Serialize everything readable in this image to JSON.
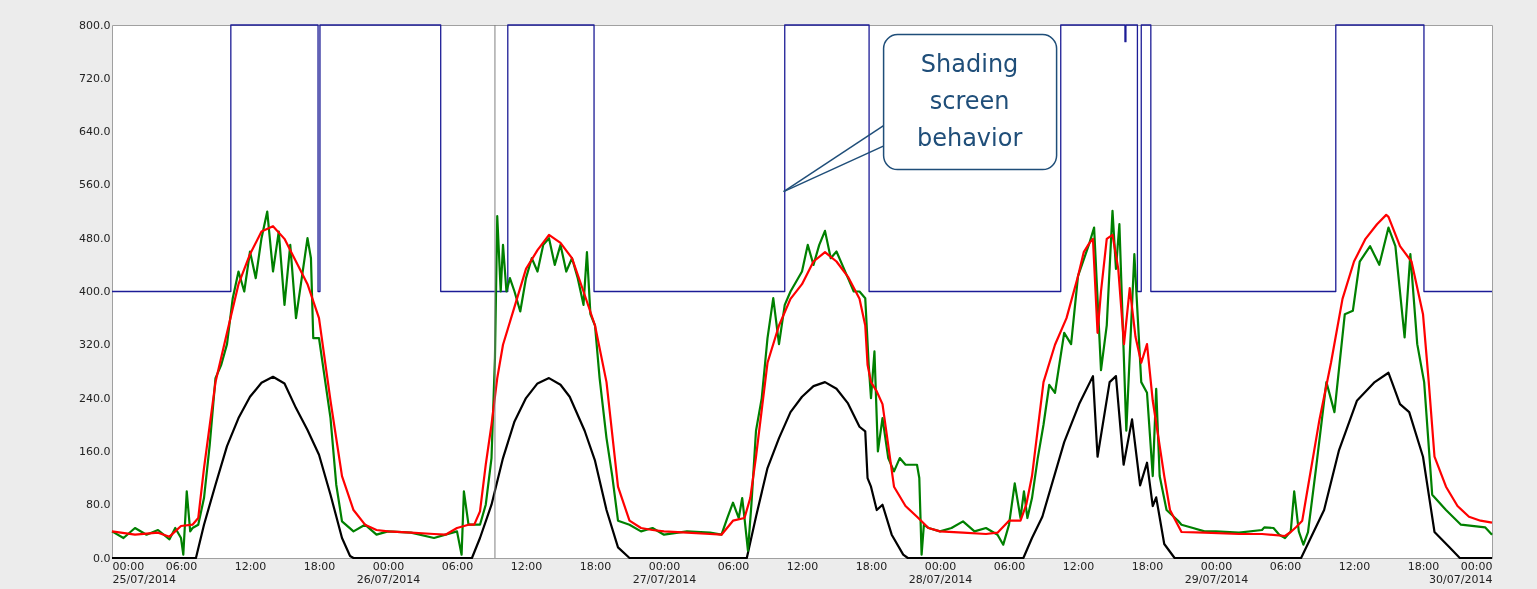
{
  "chart_data": {
    "type": "line",
    "xlim": [
      "2014-07-25T00:00",
      "2014-07-30T00:00"
    ],
    "xticks": [
      {
        "value": "2014-07-25T00:00",
        "label": "00:00\n25/07/2014"
      },
      {
        "value": "2014-07-25T06:00",
        "label": "06:00"
      },
      {
        "value": "2014-07-25T12:00",
        "label": "12:00"
      },
      {
        "value": "2014-07-25T18:00",
        "label": "18:00"
      },
      {
        "value": "2014-07-26T00:00",
        "label": "00:00\n26/07/2014"
      },
      {
        "value": "2014-07-26T06:00",
        "label": "06:00"
      },
      {
        "value": "2014-07-26T12:00",
        "label": "12:00"
      },
      {
        "value": "2014-07-26T18:00",
        "label": "18:00"
      },
      {
        "value": "2014-07-27T00:00",
        "label": "00:00\n27/07/2014"
      },
      {
        "value": "2014-07-27T06:00",
        "label": "06:00"
      },
      {
        "value": "2014-07-27T12:00",
        "label": "12:00"
      },
      {
        "value": "2014-07-27T18:00",
        "label": "18:00"
      },
      {
        "value": "2014-07-28T00:00",
        "label": "00:00\n28/07/2014"
      },
      {
        "value": "2014-07-28T06:00",
        "label": "06:00"
      },
      {
        "value": "2014-07-28T12:00",
        "label": "12:00"
      },
      {
        "value": "2014-07-28T18:00",
        "label": "18:00"
      },
      {
        "value": "2014-07-29T00:00",
        "label": "00:00\n29/07/2014"
      },
      {
        "value": "2014-07-29T06:00",
        "label": "06:00"
      },
      {
        "value": "2014-07-29T12:00",
        "label": "12:00"
      },
      {
        "value": "2014-07-29T18:00",
        "label": "18:00"
      },
      {
        "value": "2014-07-30T00:00",
        "label": "00:00\n30/07/2014"
      }
    ],
    "ylim": [
      0,
      800
    ],
    "yticks": [
      {
        "value": 0,
        "label": "0.0"
      },
      {
        "value": 80,
        "label": "80.0"
      },
      {
        "value": 160,
        "label": "160.0"
      },
      {
        "value": 240,
        "label": "240.0"
      },
      {
        "value": 320,
        "label": "320.0"
      },
      {
        "value": 400,
        "label": "400.0"
      },
      {
        "value": 480,
        "label": "480.0"
      },
      {
        "value": 560,
        "label": "560.0"
      },
      {
        "value": 640,
        "label": "640.0"
      },
      {
        "value": 720,
        "label": "720.0"
      },
      {
        "value": 800,
        "label": "800.0"
      }
    ],
    "series": [
      {
        "type": "step",
        "color": "#1c1c96",
        "x": [
          "2014-07-25T00:00",
          "2014-07-25T10:20",
          "2014-07-25T17:55",
          "2014-07-25T18:05",
          "2014-07-26T04:35",
          "2014-07-26T10:25",
          "2014-07-26T17:55",
          "2014-07-27T10:30",
          "2014-07-27T17:50",
          "2014-07-28T10:30",
          "2014-07-28T16:05",
          "2014-07-28T16:10",
          "2014-07-28T17:10",
          "2014-07-28T17:30",
          "2014-07-28T18:20",
          "2014-07-29T10:25",
          "2014-07-29T18:05",
          "2014-07-30T00:00"
        ],
        "values": [
          400,
          800,
          400,
          800,
          400,
          800,
          400,
          800,
          400,
          800,
          775,
          800,
          400,
          800,
          400,
          800,
          400,
          400
        ]
      },
      {
        "type": "line",
        "color": "#000000",
        "x": [
          "2014-07-25T00:00",
          "2014-07-25T07:18",
          "2014-07-25T08:00",
          "2014-07-25T09:00",
          "2014-07-25T10:00",
          "2014-07-25T11:00",
          "2014-07-25T12:00",
          "2014-07-25T13:00",
          "2014-07-25T14:00",
          "2014-07-25T15:00",
          "2014-07-25T16:00",
          "2014-07-25T17:00",
          "2014-07-25T18:00",
          "2014-07-25T19:00",
          "2014-07-25T20:00",
          "2014-07-25T20:42",
          "2014-07-25T21:00",
          "2014-07-26T07:18",
          "2014-07-26T08:00",
          "2014-07-26T09:00",
          "2014-07-26T10:00",
          "2014-07-26T11:00",
          "2014-07-26T12:00",
          "2014-07-26T13:00",
          "2014-07-26T14:00",
          "2014-07-26T15:00",
          "2014-07-26T15:48",
          "2014-07-26T17:06",
          "2014-07-26T18:00",
          "2014-07-26T19:00",
          "2014-07-26T20:00",
          "2014-07-26T21:00",
          "2014-07-27T07:12",
          "2014-07-27T08:00",
          "2014-07-27T09:00",
          "2014-07-27T10:00",
          "2014-07-27T11:00",
          "2014-07-27T12:00",
          "2014-07-27T13:00",
          "2014-07-27T14:00",
          "2014-07-27T15:00",
          "2014-07-27T16:00",
          "2014-07-27T17:00",
          "2014-07-27T17:30",
          "2014-07-27T17:42",
          "2014-07-27T18:00",
          "2014-07-27T18:30",
          "2014-07-27T19:00",
          "2014-07-27T19:48",
          "2014-07-27T20:48",
          "2014-07-27T21:12",
          "2014-07-28T07:15",
          "2014-07-28T08:00",
          "2014-07-28T08:54",
          "2014-07-28T10:48",
          "2014-07-28T12:06",
          "2014-07-28T13:18",
          "2014-07-28T13:42",
          "2014-07-28T14:45",
          "2014-07-28T15:18",
          "2014-07-28T15:58",
          "2014-07-28T16:42",
          "2014-07-28T17:24",
          "2014-07-28T18:00",
          "2014-07-28T18:30",
          "2014-07-28T18:48",
          "2014-07-28T19:30",
          "2014-07-28T20:24",
          "2014-07-29T07:24",
          "2014-07-29T09:24",
          "2014-07-29T10:42",
          "2014-07-29T12:15",
          "2014-07-29T13:48",
          "2014-07-29T15:00",
          "2014-07-29T15:18",
          "2014-07-29T16:00",
          "2014-07-29T16:48",
          "2014-07-29T18:00",
          "2014-07-29T19:00",
          "2014-07-29T20:18",
          "2014-07-29T21:12",
          "2014-07-30T00:00"
        ],
        "values": [
          0,
          0,
          50,
          110,
          168,
          210,
          242,
          263,
          272,
          262,
          225,
          192,
          155,
          95,
          30,
          3,
          0,
          0,
          30,
          80,
          150,
          205,
          240,
          262,
          270,
          260,
          242,
          191,
          146,
          72,
          16,
          0,
          0,
          62,
          135,
          180,
          219,
          242,
          258,
          264,
          254,
          232,
          197,
          190,
          120,
          107,
          72,
          80,
          35,
          5,
          0,
          0,
          30,
          62,
          174,
          231,
          273,
          152,
          264,
          273,
          140,
          208,
          109,
          143,
          78,
          91,
          21,
          0,
          0,
          72,
          162,
          236,
          264,
          278,
          264,
          231,
          219,
          152,
          39,
          16,
          0,
          0
        ]
      },
      {
        "type": "line",
        "color": "#008000",
        "x": [
          "2014-07-25T00:00",
          "2014-07-25T01:00",
          "2014-07-25T02:00",
          "2014-07-25T03:00",
          "2014-07-25T04:00",
          "2014-07-25T05:00",
          "2014-07-25T05:30",
          "2014-07-25T06:00",
          "2014-07-25T06:12",
          "2014-07-25T06:30",
          "2014-07-25T06:48",
          "2014-07-25T07:00",
          "2014-07-25T07:30",
          "2014-07-25T08:00",
          "2014-07-25T08:30",
          "2014-07-25T09:00",
          "2014-07-25T09:30",
          "2014-07-25T10:00",
          "2014-07-25T10:30",
          "2014-07-25T11:00",
          "2014-07-25T11:30",
          "2014-07-25T12:00",
          "2014-07-25T12:30",
          "2014-07-25T13:00",
          "2014-07-25T13:30",
          "2014-07-25T14:00",
          "2014-07-25T14:30",
          "2014-07-25T15:00",
          "2014-07-25T15:30",
          "2014-07-25T16:00",
          "2014-07-25T16:30",
          "2014-07-25T17:00",
          "2014-07-25T17:18",
          "2014-07-25T17:30",
          "2014-07-25T18:00",
          "2014-07-25T18:30",
          "2014-07-25T19:00",
          "2014-07-25T19:30",
          "2014-07-25T20:00",
          "2014-07-25T21:00",
          "2014-07-25T22:00",
          "2014-07-25T23:00",
          "2014-07-26T00:00",
          "2014-07-26T02:00",
          "2014-07-26T04:00",
          "2014-07-26T05:00",
          "2014-07-26T06:00",
          "2014-07-26T06:24",
          "2014-07-26T06:36",
          "2014-07-26T07:00",
          "2014-07-26T08:00",
          "2014-07-26T08:30",
          "2014-07-26T09:00",
          "2014-07-26T09:18",
          "2014-07-26T09:30",
          "2014-07-26T09:48",
          "2014-07-26T10:00",
          "2014-07-26T10:18",
          "2014-07-26T10:36",
          "2014-07-26T11:00",
          "2014-07-26T11:30",
          "2014-07-26T12:00",
          "2014-07-26T12:30",
          "2014-07-26T13:00",
          "2014-07-26T13:30",
          "2014-07-26T14:00",
          "2014-07-26T14:30",
          "2014-07-26T15:00",
          "2014-07-26T15:30",
          "2014-07-26T16:00",
          "2014-07-26T16:30",
          "2014-07-26T17:00",
          "2014-07-26T17:18",
          "2014-07-26T17:36",
          "2014-07-26T18:00",
          "2014-07-26T18:24",
          "2014-07-26T19:00",
          "2014-07-26T19:30",
          "2014-07-26T20:00",
          "2014-07-26T21:00",
          "2014-07-26T22:00",
          "2014-07-26T23:00",
          "2014-07-27T00:00",
          "2014-07-27T02:00",
          "2014-07-27T04:00",
          "2014-07-27T05:00",
          "2014-07-27T05:30",
          "2014-07-27T06:00",
          "2014-07-27T06:30",
          "2014-07-27T06:48",
          "2014-07-27T07:00",
          "2014-07-27T07:18",
          "2014-07-27T07:36",
          "2014-07-27T08:00",
          "2014-07-27T08:30",
          "2014-07-27T09:00",
          "2014-07-27T09:30",
          "2014-07-27T10:00",
          "2014-07-27T10:30",
          "2014-07-27T11:00",
          "2014-07-27T12:00",
          "2014-07-27T12:30",
          "2014-07-27T13:00",
          "2014-07-27T13:30",
          "2014-07-27T14:00",
          "2014-07-27T14:30",
          "2014-07-27T15:00",
          "2014-07-27T16:00",
          "2014-07-27T16:30",
          "2014-07-27T17:00",
          "2014-07-27T17:30",
          "2014-07-27T17:48",
          "2014-07-27T18:00",
          "2014-07-27T18:18",
          "2014-07-27T18:36",
          "2014-07-27T19:00",
          "2014-07-27T19:30",
          "2014-07-27T20:00",
          "2014-07-27T20:30",
          "2014-07-27T21:00",
          "2014-07-27T22:00",
          "2014-07-27T22:12",
          "2014-07-27T22:24",
          "2014-07-27T22:36",
          "2014-07-27T23:00",
          "2014-07-28T00:00",
          "2014-07-28T01:00",
          "2014-07-28T02:00",
          "2014-07-28T03:00",
          "2014-07-28T04:00",
          "2014-07-28T05:00",
          "2014-07-28T05:30",
          "2014-07-28T06:00",
          "2014-07-28T06:30",
          "2014-07-28T07:00",
          "2014-07-28T07:18",
          "2014-07-28T07:36",
          "2014-07-28T08:00",
          "2014-07-28T08:30",
          "2014-07-28T09:00",
          "2014-07-28T09:30",
          "2014-07-28T10:00",
          "2014-07-28T10:48",
          "2014-07-28T11:24",
          "2014-07-28T12:00",
          "2014-07-28T13:00",
          "2014-07-28T13:24",
          "2014-07-28T14:00",
          "2014-07-28T14:30",
          "2014-07-28T15:00",
          "2014-07-28T15:18",
          "2014-07-28T15:36",
          "2014-07-28T16:12",
          "2014-07-28T16:54",
          "2014-07-28T17:30",
          "2014-07-28T18:00",
          "2014-07-28T18:30",
          "2014-07-28T18:48",
          "2014-07-28T19:06",
          "2014-07-28T19:42",
          "2014-07-28T20:42",
          "2014-07-28T21:00",
          "2014-07-28T22:00",
          "2014-07-28T23:00",
          "2014-07-29T00:00",
          "2014-07-29T02:00",
          "2014-07-29T04:00",
          "2014-07-29T04:12",
          "2014-07-29T05:00",
          "2014-07-29T05:30",
          "2014-07-29T06:00",
          "2014-07-29T06:30",
          "2014-07-29T06:48",
          "2014-07-29T07:12",
          "2014-07-29T07:36",
          "2014-07-29T08:00",
          "2014-07-29T08:42",
          "2014-07-29T09:36",
          "2014-07-29T10:18",
          "2014-07-29T11:12",
          "2014-07-29T11:54",
          "2014-07-29T12:30",
          "2014-07-29T13:24",
          "2014-07-29T14:12",
          "2014-07-29T15:00",
          "2014-07-29T15:36",
          "2014-07-29T16:24",
          "2014-07-29T16:54",
          "2014-07-29T17:30",
          "2014-07-29T18:06",
          "2014-07-29T18:48",
          "2014-07-29T20:00",
          "2014-07-29T21:18",
          "2014-07-29T23:24",
          "2014-07-30T00:00"
        ],
        "values": [
          40,
          30,
          45,
          35,
          42,
          28,
          45,
          30,
          5,
          100,
          40,
          45,
          50,
          90,
          170,
          270,
          290,
          321,
          390,
          430,
          400,
          460,
          420,
          480,
          520,
          430,
          490,
          380,
          470,
          360,
          420,
          480,
          450,
          330,
          330,
          270,
          210,
          110,
          55,
          40,
          50,
          35,
          40,
          38,
          30,
          35,
          40,
          5,
          100,
          50,
          50,
          80,
          150,
          300,
          513,
          400,
          470,
          400,
          420,
          400,
          370,
          420,
          450,
          430,
          470,
          480,
          440,
          470,
          430,
          450,
          420,
          380,
          459,
          366,
          349,
          270,
          180,
          123,
          56,
          50,
          40,
          45,
          35,
          40,
          38,
          35,
          60,
          83,
          60,
          90,
          60,
          11,
          80,
          191,
          240,
          330,
          390,
          321,
          380,
          400,
          430,
          470,
          440,
          470,
          491,
          450,
          460,
          420,
          400,
          400,
          390,
          290,
          240,
          310,
          160,
          210,
          150,
          130,
          150,
          140,
          140,
          120,
          5,
          50,
          45,
          40,
          45,
          55,
          40,
          45,
          35,
          20,
          50,
          112,
          60,
          100,
          60,
          90,
          150,
          200,
          260,
          248,
          338,
          321,
          423,
          473,
          496,
          282,
          349,
          521,
          434,
          501,
          191,
          456,
          264,
          248,
          123,
          254,
          123,
          72,
          56,
          50,
          45,
          40,
          40,
          38,
          42,
          46,
          45,
          35,
          30,
          40,
          100,
          40,
          20,
          39,
          135,
          264,
          219,
          366,
          371,
          445,
          468,
          440,
          496,
          468,
          331,
          456,
          321,
          264,
          95,
          72,
          50,
          46,
          35
        ]
      },
      {
        "type": "line",
        "color": "#ff0000",
        "x": [
          "2014-07-25T00:00",
          "2014-07-25T02:00",
          "2014-07-25T04:00",
          "2014-07-25T05:00",
          "2014-07-25T06:00",
          "2014-07-25T07:00",
          "2014-07-25T07:30",
          "2014-07-25T08:00",
          "2014-07-25T09:00",
          "2014-07-25T10:00",
          "2014-07-25T11:00",
          "2014-07-25T12:00",
          "2014-07-25T13:00",
          "2014-07-25T14:00",
          "2014-07-25T15:00",
          "2014-07-25T16:00",
          "2014-07-25T17:00",
          "2014-07-25T18:00",
          "2014-07-25T19:00",
          "2014-07-25T20:00",
          "2014-07-25T21:00",
          "2014-07-25T22:00",
          "2014-07-25T23:00",
          "2014-07-26T00:00",
          "2014-07-26T02:00",
          "2014-07-26T04:00",
          "2014-07-26T05:00",
          "2014-07-26T06:00",
          "2014-07-26T07:00",
          "2014-07-26T07:30",
          "2014-07-26T08:00",
          "2014-07-26T08:30",
          "2014-07-26T09:00",
          "2014-07-26T09:30",
          "2014-07-26T10:00",
          "2014-07-26T11:00",
          "2014-07-26T12:00",
          "2014-07-26T13:00",
          "2014-07-26T14:00",
          "2014-07-26T15:00",
          "2014-07-26T16:00",
          "2014-07-26T17:00",
          "2014-07-26T18:00",
          "2014-07-26T19:00",
          "2014-07-26T20:00",
          "2014-07-26T21:00",
          "2014-07-26T22:00",
          "2014-07-26T23:00",
          "2014-07-27T00:00",
          "2014-07-27T02:00",
          "2014-07-27T04:00",
          "2014-07-27T05:00",
          "2014-07-27T06:00",
          "2014-07-27T07:00",
          "2014-07-27T07:30",
          "2014-07-27T08:00",
          "2014-07-27T09:00",
          "2014-07-27T10:00",
          "2014-07-27T11:00",
          "2014-07-27T12:00",
          "2014-07-27T13:00",
          "2014-07-27T14:00",
          "2014-07-27T15:00",
          "2014-07-27T16:00",
          "2014-07-27T17:00",
          "2014-07-27T17:30",
          "2014-07-27T17:42",
          "2014-07-27T18:00",
          "2014-07-27T18:30",
          "2014-07-27T19:00",
          "2014-07-27T20:00",
          "2014-07-27T21:00",
          "2014-07-27T22:00",
          "2014-07-27T23:00",
          "2014-07-28T00:00",
          "2014-07-28T02:00",
          "2014-07-28T04:00",
          "2014-07-28T05:00",
          "2014-07-28T06:00",
          "2014-07-28T07:00",
          "2014-07-28T07:30",
          "2014-07-28T08:00",
          "2014-07-28T09:00",
          "2014-07-28T10:00",
          "2014-07-28T11:00",
          "2014-07-28T12:00",
          "2014-07-28T12:30",
          "2014-07-28T13:00",
          "2014-07-28T13:18",
          "2014-07-28T13:42",
          "2014-07-28T14:00",
          "2014-07-28T14:30",
          "2014-07-28T15:00",
          "2014-07-28T15:30",
          "2014-07-28T16:00",
          "2014-07-28T16:30",
          "2014-07-28T17:00",
          "2014-07-28T17:30",
          "2014-07-28T18:00",
          "2014-07-28T18:30",
          "2014-07-28T19:00",
          "2014-07-28T19:30",
          "2014-07-28T20:00",
          "2014-07-28T21:00",
          "2014-07-28T23:00",
          "2014-07-29T02:00",
          "2014-07-29T04:00",
          "2014-07-29T06:00",
          "2014-07-29T06:30",
          "2014-07-29T07:00",
          "2014-07-29T07:30",
          "2014-07-29T08:00",
          "2014-07-29T09:00",
          "2014-07-29T10:00",
          "2014-07-29T11:00",
          "2014-07-29T12:00",
          "2014-07-29T13:00",
          "2014-07-29T14:00",
          "2014-07-29T14:48",
          "2014-07-29T15:00",
          "2014-07-29T16:00",
          "2014-07-29T17:00",
          "2014-07-29T18:00",
          "2014-07-29T18:30",
          "2014-07-29T19:00",
          "2014-07-29T20:00",
          "2014-07-29T21:00",
          "2014-07-29T22:00",
          "2014-07-29T23:00",
          "2014-07-30T00:00"
        ],
        "values": [
          40,
          35,
          38,
          32,
          48,
          50,
          60,
          135,
          264,
          338,
          411,
          456,
          490,
          498,
          479,
          445,
          411,
          360,
          236,
          123,
          72,
          50,
          42,
          40,
          38,
          36,
          35,
          45,
          50,
          50,
          70,
          140,
          200,
          270,
          320,
          377,
          434,
          462,
          485,
          473,
          450,
          400,
          349,
          264,
          107,
          56,
          45,
          42,
          40,
          38,
          36,
          35,
          56,
          60,
          90,
          152,
          293,
          349,
          389,
          411,
          445,
          459,
          445,
          422,
          389,
          349,
          290,
          264,
          250,
          231,
          107,
          78,
          62,
          45,
          40,
          38,
          36,
          38,
          56,
          56,
          80,
          123,
          264,
          320,
          360,
          423,
          459,
          473,
          479,
          338,
          400,
          479,
          485,
          434,
          321,
          405,
          332,
          293,
          321,
          236,
          180,
          123,
          72,
          39,
          38,
          36,
          36,
          33,
          39,
          47,
          56,
          107,
          208,
          293,
          389,
          445,
          479,
          501,
          515,
          512,
          468,
          445,
          366,
          264,
          152,
          107,
          78,
          62,
          56,
          53
        ]
      }
    ],
    "ref_lines": [
      {
        "axis": "x",
        "value": "2014-07-26T09:18",
        "color": "#808080"
      }
    ],
    "annotations": [
      {
        "text": "Shading screen behavior",
        "x": "2014-07-27T10:24",
        "y": 550
      }
    ]
  }
}
